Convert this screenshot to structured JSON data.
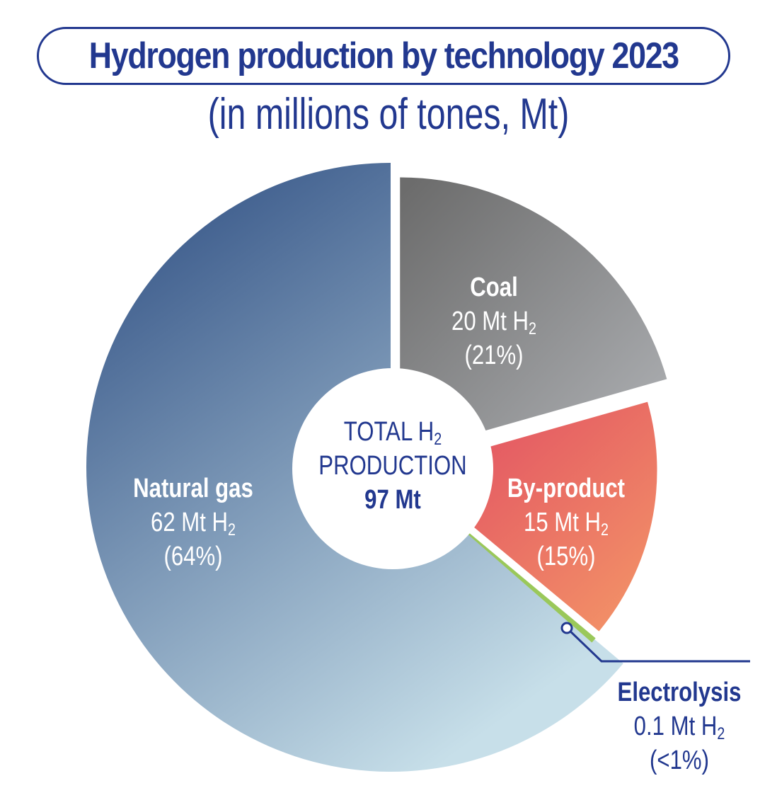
{
  "chart_data": {
    "type": "pie",
    "title": "Hydrogen production by technology 2023",
    "subtitle": "(in millions of tones, Mt)",
    "center": {
      "line1": "TOTAL H",
      "line1_sub": "2",
      "line2": "PRODUCTION",
      "line3": "97 Mt"
    },
    "slices": [
      {
        "name": "Natural gas",
        "amount": "62 Mt H",
        "sub": "2",
        "percent": "(64%)",
        "value": 62
      },
      {
        "name": "Coal",
        "amount": "20 Mt H",
        "sub": "2",
        "percent": "(21%)",
        "value": 20
      },
      {
        "name": "By-product",
        "amount": "15 Mt H",
        "sub": "2",
        "percent": "(15%)",
        "value": 15
      },
      {
        "name": "Electrolysis",
        "amount": "0.1 Mt H",
        "sub": "2",
        "percent": "(<1%)",
        "value": 0.1
      }
    ],
    "colors": {
      "title": "#22388f",
      "natural_gas_dark": "#41608f",
      "natural_gas_light": "#c3dbe6",
      "coal_dark": "#6e6e6e",
      "coal_light": "#a3a5a8",
      "byproduct_dark": "#e55f62",
      "byproduct_light": "#f08a68",
      "electrolysis": "#9ac85a",
      "leader": "#22388f"
    }
  }
}
